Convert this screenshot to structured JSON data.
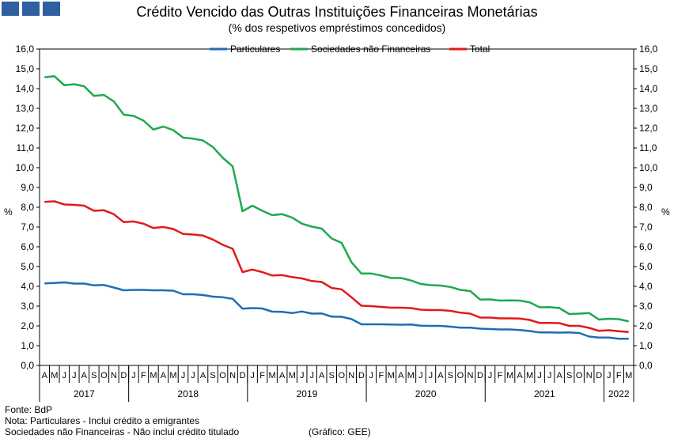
{
  "header": {
    "title": "Crédito Vencido das Outras Instituições Financeiras Monetárias",
    "subtitle": "(% dos respetivos empréstimos concedidos)"
  },
  "footer": {
    "source": "Fonte: BdP",
    "note1": "Nota: Particulares - Inclui crédito a emigrantes",
    "note2": "Sociedades não Financeiras - Não inclui crédito titulado",
    "credit": "(Gráfico: GEE)"
  },
  "colors": {
    "particulares": "#1f6db5",
    "snf": "#1fa84f",
    "total": "#e21a1a"
  },
  "chart_data": {
    "type": "line",
    "title": "Crédito Vencido das Outras Instituições Financeiras Monetárias",
    "subtitle": "(% dos respetivos empréstimos concedidos)",
    "ylabel": "%",
    "ylabel_right": "%",
    "ylim": [
      0,
      16
    ],
    "yticks": [
      "0,0",
      "1,0",
      "2,0",
      "3,0",
      "4,0",
      "5,0",
      "6,0",
      "7,0",
      "8,0",
      "9,0",
      "10,0",
      "11,0",
      "12,0",
      "13,0",
      "14,0",
      "15,0",
      "16,0"
    ],
    "legend": "top",
    "x": [
      "A",
      "M",
      "J",
      "J",
      "A",
      "S",
      "O",
      "N",
      "D",
      "J",
      "F",
      "M",
      "A",
      "M",
      "J",
      "J",
      "A",
      "S",
      "O",
      "N",
      "D",
      "J",
      "F",
      "M",
      "A",
      "M",
      "J",
      "J",
      "A",
      "S",
      "O",
      "N",
      "D",
      "J",
      "F",
      "M",
      "A",
      "M",
      "J",
      "J",
      "A",
      "S",
      "O",
      "N",
      "D",
      "J",
      "F",
      "M",
      "A",
      "M",
      "J",
      "J",
      "A",
      "S",
      "O",
      "N",
      "D",
      "J",
      "F",
      "M"
    ],
    "years": [
      {
        "label": "2017",
        "start": 0,
        "end": 8
      },
      {
        "label": "2018",
        "start": 9,
        "end": 20
      },
      {
        "label": "2019",
        "start": 21,
        "end": 32
      },
      {
        "label": "2020",
        "start": 33,
        "end": 44
      },
      {
        "label": "2021",
        "start": 45,
        "end": 56
      },
      {
        "label": "2022",
        "start": 57,
        "end": 59
      }
    ],
    "series": [
      {
        "name": "Particulares",
        "color": "#1f6db5",
        "values": [
          4.15,
          4.17,
          4.2,
          4.14,
          4.14,
          4.05,
          4.07,
          3.94,
          3.8,
          3.82,
          3.82,
          3.8,
          3.8,
          3.78,
          3.6,
          3.6,
          3.56,
          3.48,
          3.45,
          3.37,
          2.87,
          2.9,
          2.88,
          2.72,
          2.71,
          2.65,
          2.73,
          2.62,
          2.63,
          2.47,
          2.46,
          2.35,
          2.08,
          2.08,
          2.08,
          2.07,
          2.06,
          2.07,
          2.01,
          2.0,
          2.0,
          1.96,
          1.91,
          1.91,
          1.86,
          1.84,
          1.82,
          1.82,
          1.79,
          1.74,
          1.67,
          1.67,
          1.66,
          1.67,
          1.64,
          1.46,
          1.41,
          1.41,
          1.35,
          1.35
        ]
      },
      {
        "name": "Sociedades não Financeiras",
        "color": "#1fa84f",
        "values": [
          14.57,
          14.63,
          14.17,
          14.22,
          14.12,
          13.63,
          13.68,
          13.35,
          12.68,
          12.62,
          12.38,
          11.93,
          12.08,
          11.9,
          11.52,
          11.47,
          11.38,
          11.05,
          10.5,
          10.07,
          7.8,
          8.08,
          7.82,
          7.6,
          7.65,
          7.48,
          7.17,
          7.02,
          6.92,
          6.42,
          6.2,
          5.22,
          4.65,
          4.65,
          4.55,
          4.42,
          4.42,
          4.3,
          4.12,
          4.06,
          4.04,
          3.97,
          3.82,
          3.76,
          3.33,
          3.34,
          3.28,
          3.29,
          3.28,
          3.19,
          2.94,
          2.95,
          2.9,
          2.6,
          2.62,
          2.65,
          2.32,
          2.36,
          2.34,
          2.23
        ]
      },
      {
        "name": "Total",
        "color": "#e21a1a",
        "values": [
          8.27,
          8.3,
          8.14,
          8.12,
          8.08,
          7.82,
          7.85,
          7.65,
          7.25,
          7.28,
          7.17,
          6.95,
          7.0,
          6.9,
          6.65,
          6.62,
          6.57,
          6.37,
          6.1,
          5.9,
          4.72,
          4.85,
          4.72,
          4.55,
          4.57,
          4.47,
          4.4,
          4.27,
          4.22,
          3.92,
          3.85,
          3.45,
          3.02,
          3.0,
          2.96,
          2.92,
          2.92,
          2.9,
          2.82,
          2.8,
          2.8,
          2.76,
          2.67,
          2.62,
          2.42,
          2.42,
          2.38,
          2.38,
          2.37,
          2.3,
          2.15,
          2.15,
          2.14,
          2.0,
          2.0,
          1.9,
          1.75,
          1.78,
          1.73,
          1.69
        ]
      }
    ]
  }
}
